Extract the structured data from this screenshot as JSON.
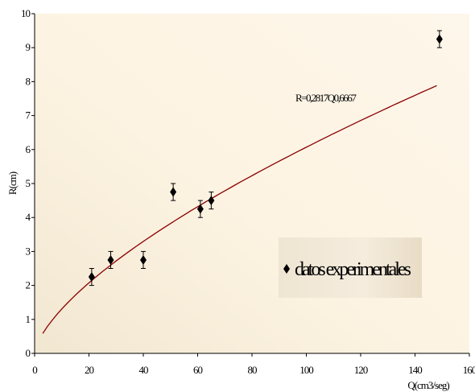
{
  "chart_data": {
    "type": "scatter",
    "xlabel": "Q(cm3/seg)",
    "ylabel": "R(cm)",
    "xlim": [
      0,
      160
    ],
    "ylim": [
      0,
      10
    ],
    "x_ticks": [
      "0",
      "20",
      "40",
      "60",
      "80",
      "100",
      "120",
      "140",
      "160"
    ],
    "y_ticks": [
      "0",
      "1",
      "2",
      "3",
      "4",
      "5",
      "6",
      "7",
      "8",
      "9",
      "10"
    ],
    "x_tick_values": [
      0,
      20,
      40,
      60,
      80,
      100,
      120,
      140,
      160
    ],
    "y_tick_values": [
      0,
      1,
      2,
      3,
      4,
      5,
      6,
      7,
      8,
      9,
      10
    ],
    "grid": false,
    "legend_position": "bottom-right",
    "annotation": "R=0,2817Q0,6667",
    "series": [
      {
        "name": "datos experimentales",
        "x": [
          21,
          28,
          40,
          51,
          61,
          65,
          149
        ],
        "y": [
          2.25,
          2.75,
          2.75,
          4.75,
          4.25,
          4.5,
          9.25
        ],
        "error": 0.25,
        "marker": "diamond",
        "color": "#000000"
      }
    ],
    "fit": {
      "coefficient": 0.2817,
      "exponent": 0.6667,
      "x_range": [
        3,
        148
      ],
      "color": "#8b0000"
    }
  }
}
